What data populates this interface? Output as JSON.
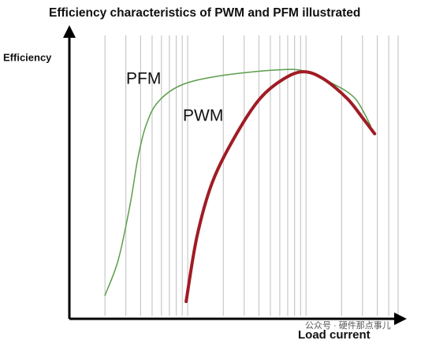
{
  "chart_data": {
    "type": "line",
    "title": "Efficiency characteristics of PWM and PFM illustrated",
    "y_label": "Efficiency",
    "x_label": "Load current",
    "x_scale": "log",
    "xlim": [
      1,
      600
    ],
    "ylim": [
      0,
      100
    ],
    "grid": true,
    "series": [
      {
        "name": "PFM",
        "color": "#5a9e4a",
        "x": [
          2.0,
          2.59,
          3.26,
          3.8,
          4.43,
          5.58,
          8.85,
          19.1,
          55.8,
          95.5,
          163,
          259,
          352
        ],
        "values": [
          8.3,
          20.8,
          40.3,
          56.9,
          68.1,
          76.4,
          82.5,
          85.8,
          87.8,
          87.5,
          83.3,
          77.8,
          68.1
        ]
      },
      {
        "name": "PWM",
        "color": "#a01c24",
        "x": [
          9.7,
          12.0,
          16.3,
          25.9,
          41.0,
          65.0,
          95.5,
          140,
          222,
          302,
          380
        ],
        "values": [
          6.1,
          29.2,
          48.6,
          65.3,
          77.8,
          84.7,
          87.2,
          84.7,
          77.8,
          70.8,
          65.3
        ]
      }
    ],
    "watermark": "公众号 · 硬件那点事儿"
  }
}
